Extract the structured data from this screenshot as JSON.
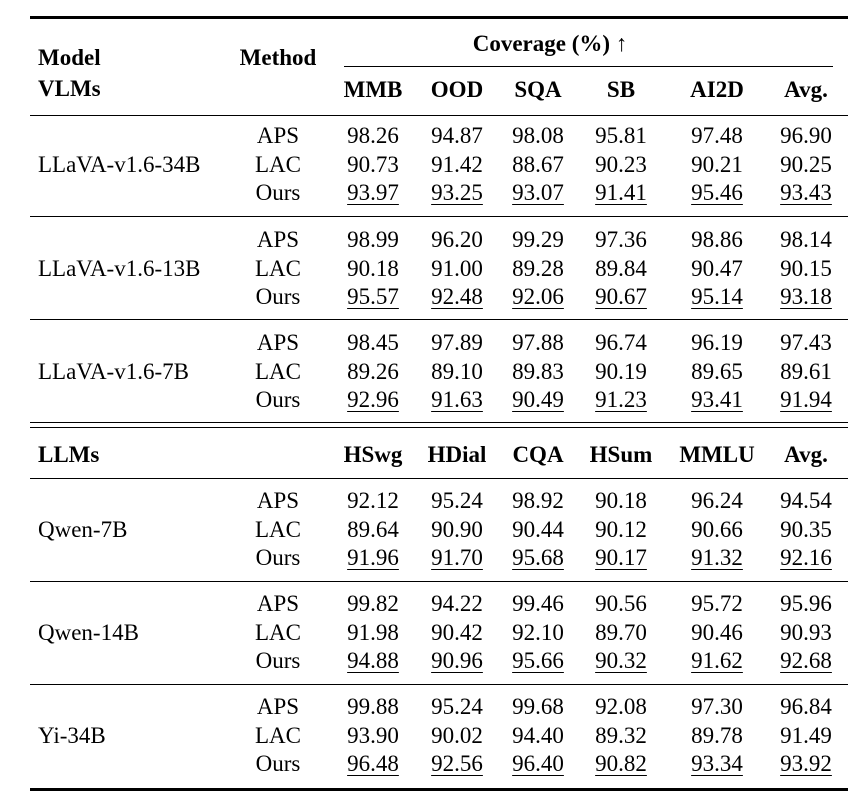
{
  "header": {
    "model_label": "Model",
    "vlm_label": "VLMs",
    "method_label": "Method",
    "coverage_label": "Coverage (%) ↑",
    "vlm_columns": [
      "MMB",
      "OOD",
      "SQA",
      "SB",
      "AI2D",
      "Avg."
    ]
  },
  "vlm_groups": [
    {
      "model": "LLaVA-v1.6-34B",
      "rows": [
        {
          "method": "APS",
          "values": [
            "98.26",
            "94.87",
            "98.08",
            "95.81",
            "97.48",
            "96.90"
          ]
        },
        {
          "method": "LAC",
          "values": [
            "90.73",
            "91.42",
            "88.67",
            "90.23",
            "90.21",
            "90.25"
          ]
        },
        {
          "method": "Ours",
          "values": [
            "93.97",
            "93.25",
            "93.07",
            "91.41",
            "95.46",
            "93.43"
          ]
        }
      ]
    },
    {
      "model": "LLaVA-v1.6-13B",
      "rows": [
        {
          "method": "APS",
          "values": [
            "98.99",
            "96.20",
            "99.29",
            "97.36",
            "98.86",
            "98.14"
          ]
        },
        {
          "method": "LAC",
          "values": [
            "90.18",
            "91.00",
            "89.28",
            "89.84",
            "90.47",
            "90.15"
          ]
        },
        {
          "method": "Ours",
          "values": [
            "95.57",
            "92.48",
            "92.06",
            "90.67",
            "95.14",
            "93.18"
          ]
        }
      ]
    },
    {
      "model": "LLaVA-v1.6-7B",
      "rows": [
        {
          "method": "APS",
          "values": [
            "98.45",
            "97.89",
            "97.88",
            "96.74",
            "96.19",
            "97.43"
          ]
        },
        {
          "method": "LAC",
          "values": [
            "89.26",
            "89.10",
            "89.83",
            "90.19",
            "89.65",
            "89.61"
          ]
        },
        {
          "method": "Ours",
          "values": [
            "92.96",
            "91.63",
            "90.49",
            "91.23",
            "93.41",
            "91.94"
          ]
        }
      ]
    }
  ],
  "llm_header": {
    "label": "LLMs",
    "columns": [
      "HSwg",
      "HDial",
      "CQA",
      "HSum",
      "MMLU",
      "Avg."
    ]
  },
  "llm_groups": [
    {
      "model": "Qwen-7B",
      "rows": [
        {
          "method": "APS",
          "values": [
            "92.12",
            "95.24",
            "98.92",
            "90.18",
            "96.24",
            "94.54"
          ]
        },
        {
          "method": "LAC",
          "values": [
            "89.64",
            "90.90",
            "90.44",
            "90.12",
            "90.66",
            "90.35"
          ]
        },
        {
          "method": "Ours",
          "values": [
            "91.96",
            "91.70",
            "95.68",
            "90.17",
            "91.32",
            "92.16"
          ]
        }
      ]
    },
    {
      "model": "Qwen-14B",
      "rows": [
        {
          "method": "APS",
          "values": [
            "99.82",
            "94.22",
            "99.46",
            "90.56",
            "95.72",
            "95.96"
          ]
        },
        {
          "method": "LAC",
          "values": [
            "91.98",
            "90.42",
            "92.10",
            "89.70",
            "90.46",
            "90.93"
          ]
        },
        {
          "method": "Ours",
          "values": [
            "94.88",
            "90.96",
            "95.66",
            "90.32",
            "91.62",
            "92.68"
          ]
        }
      ]
    },
    {
      "model": "Yi-34B",
      "rows": [
        {
          "method": "APS",
          "values": [
            "99.88",
            "95.24",
            "99.68",
            "92.08",
            "97.30",
            "96.84"
          ]
        },
        {
          "method": "LAC",
          "values": [
            "93.90",
            "90.02",
            "94.40",
            "89.32",
            "89.78",
            "91.49"
          ]
        },
        {
          "method": "Ours",
          "values": [
            "96.48",
            "92.56",
            "96.40",
            "90.82",
            "93.34",
            "93.92"
          ]
        }
      ]
    }
  ]
}
